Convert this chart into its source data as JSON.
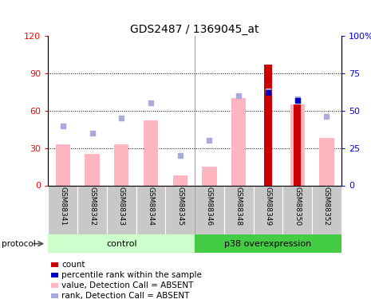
{
  "title": "GDS2487 / 1369045_at",
  "samples": [
    "GSM88341",
    "GSM88342",
    "GSM88343",
    "GSM88344",
    "GSM88345",
    "GSM88346",
    "GSM88348",
    "GSM88349",
    "GSM88350",
    "GSM88352"
  ],
  "value_bars": [
    33,
    25,
    33,
    52,
    8,
    15,
    70,
    null,
    65,
    38
  ],
  "rank_dots": [
    40,
    35,
    45,
    55,
    20,
    30,
    60,
    63,
    58,
    46
  ],
  "count_bars": [
    null,
    null,
    null,
    null,
    null,
    null,
    null,
    97,
    65,
    null
  ],
  "percentile_dots": [
    null,
    null,
    null,
    null,
    null,
    null,
    null,
    62,
    57,
    null
  ],
  "left_ticks": [
    0,
    30,
    60,
    90,
    120
  ],
  "right_ticks": [
    0,
    25,
    50,
    75,
    100
  ],
  "left_tick_labels": [
    "0",
    "30",
    "60",
    "90",
    "120"
  ],
  "right_tick_labels": [
    "0",
    "25",
    "50",
    "75",
    "100%"
  ],
  "grid_lines": [
    30,
    60,
    90
  ],
  "value_bar_color": "#FFB6C1",
  "count_bar_color": "#CC0000",
  "rank_dot_color": "#AAAADD",
  "percentile_dot_color": "#0000BB",
  "control_bg_light": "#CCFFCC",
  "p38_bg": "#44CC44",
  "sample_bg": "#C8C8C8",
  "legend_items": [
    {
      "label": "count",
      "color": "#CC0000"
    },
    {
      "label": "percentile rank within the sample",
      "color": "#0000BB"
    },
    {
      "label": "value, Detection Call = ABSENT",
      "color": "#FFB6C1"
    },
    {
      "label": "rank, Detection Call = ABSENT",
      "color": "#AAAADD"
    }
  ],
  "control_label": "control",
  "p38_label": "p38 overexpression",
  "n_control": 5,
  "n_p38": 5
}
